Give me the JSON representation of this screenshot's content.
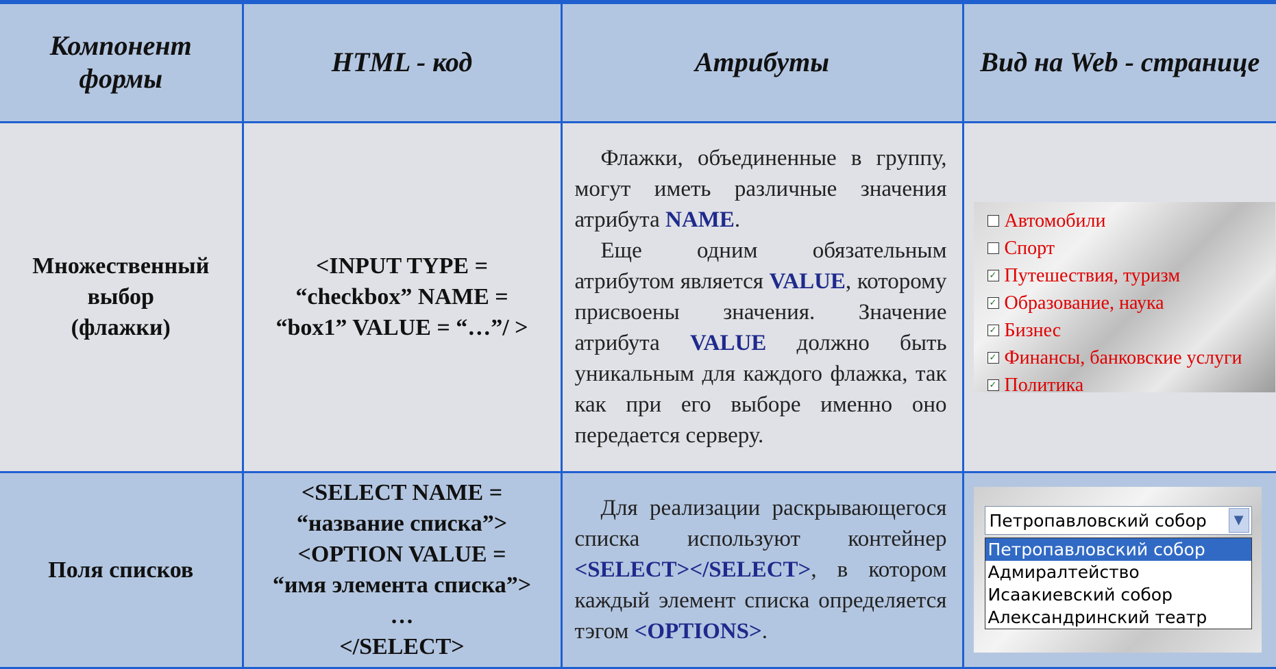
{
  "table": {
    "headers": [
      "Компонент формы",
      "HTML - код",
      "Атрибуты",
      "Вид на Web - странице"
    ],
    "rows": [
      {
        "component": [
          "Множественный",
          "выбор",
          "(флажки)"
        ],
        "code": [
          "<INPUT TYPE =",
          "“checkbox” NAME =",
          "“box1” VALUE = “…”/ >"
        ],
        "attributes": [
          [
            {
              "text": "Флажки, объединенные в группу, могут иметь различные значения атрибута "
            },
            {
              "text": "NAME",
              "em": true
            },
            {
              "text": "."
            }
          ],
          [
            {
              "text": "Еще одним обязательным атрибутом является "
            },
            {
              "text": "VALUE",
              "em": true
            },
            {
              "text": ", которому присвоены значения. Значение атрибута "
            },
            {
              "text": "VALUE",
              "em": true
            },
            {
              "text": " должно быть уникальным для каждого флажка, так как при его выборе именно оно передается серверу."
            }
          ]
        ],
        "preview": {
          "checkboxes": [
            {
              "label": "Автомобили",
              "checked": false
            },
            {
              "label": "Спорт",
              "checked": false
            },
            {
              "label": "Путешествия, туризм",
              "checked": true
            },
            {
              "label": "Образование, наука",
              "checked": true
            },
            {
              "label": "Бизнес",
              "checked": true
            },
            {
              "label": "Финансы, банковские услуги",
              "checked": true
            },
            {
              "label": "Политика",
              "checked": true
            }
          ]
        }
      },
      {
        "component": [
          "Поля списков"
        ],
        "code": [
          "<SELECT NAME =",
          "“название списка”>",
          "<OPTION VALUE  =",
          "“имя элемента списка”>",
          "…",
          "</SELECT>"
        ],
        "attributes": [
          [
            {
              "text": "Для реализации раскрывающегося списка используют контейнер "
            },
            {
              "text": "<SELECT></SELECT>",
              "em": true
            },
            {
              "text": ", в котором каждый элемент списка определяется тэгом "
            },
            {
              "text": "<OPTIONS>",
              "em": true
            },
            {
              "text": "."
            }
          ]
        ],
        "preview": {
          "select": {
            "selected": "Петропавловский собор",
            "options": [
              "Петропавловский собор",
              "Адмиралтейство",
              "Исаакиевский собор",
              "Александринский театр"
            ]
          }
        }
      }
    ]
  }
}
